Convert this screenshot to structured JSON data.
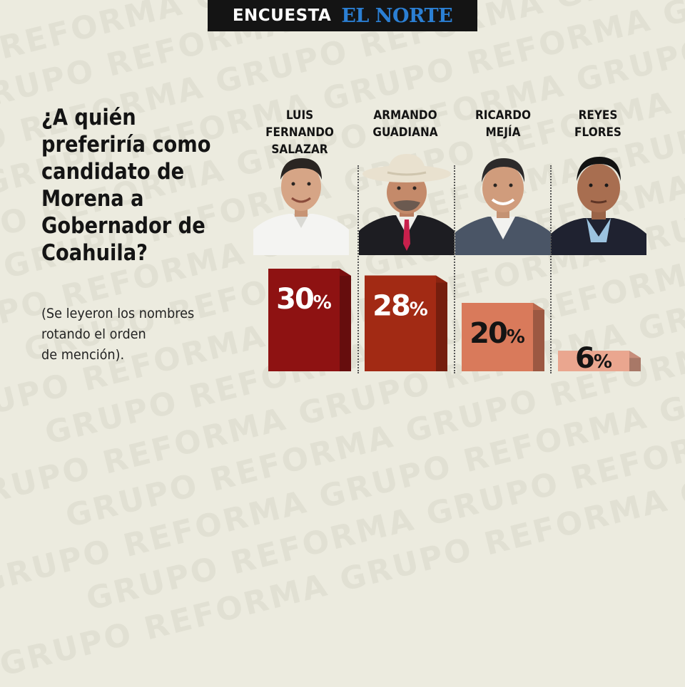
{
  "header": {
    "label": "ENCUESTA",
    "brand": "EL NORTE"
  },
  "watermark": "GRUPO REFORMA",
  "question": "¿A quién preferiría como candidato de Morena a Gobernador de Coahuila?",
  "note": "(Se leyeron los nombres\nrotando el orden\nde mención).",
  "candidates": [
    {
      "name": "LUIS FERNANDO\nSALAZAR",
      "value": 30,
      "color": "#8e1212"
    },
    {
      "name": "ARMANDO\nGUADIANA",
      "value": 28,
      "color": "#a22a14"
    },
    {
      "name": "RICARDO\nMEJÍA",
      "value": 20,
      "color": "#d97a5b"
    },
    {
      "name": "REYES\nFLORES",
      "value": 6,
      "color": "#eaa68f"
    }
  ],
  "chart_data": {
    "type": "bar",
    "title": "¿A quién preferiría como candidato de Morena a Gobernador de Coahuila?",
    "categories": [
      "LUIS FERNANDO SALAZAR",
      "ARMANDO GUADIANA",
      "RICARDO MEJÍA",
      "REYES FLORES"
    ],
    "values": [
      30,
      28,
      20,
      6
    ],
    "unit": "%"
  }
}
